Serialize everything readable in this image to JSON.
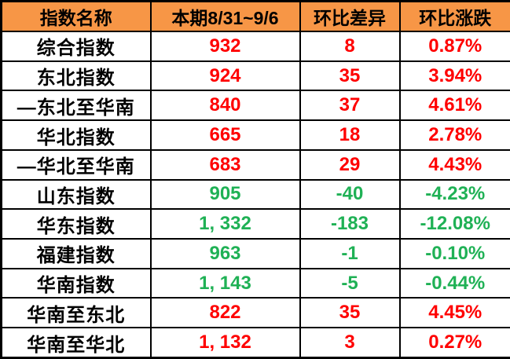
{
  "colors": {
    "header_bg": "#F79646",
    "up": "#FF0000",
    "down": "#1FB155",
    "border": "#000000",
    "row_bg": "#FFFFFF"
  },
  "chart_data": {
    "type": "table",
    "columns": [
      "指数名称",
      "本期8/31~9/6",
      "环比差异",
      "环比涨跌"
    ],
    "rows": [
      {
        "name": "综合指数",
        "current": "932",
        "diff": "8",
        "pct": "0.87%",
        "trend": "up"
      },
      {
        "name": "东北指数",
        "current": "924",
        "diff": "35",
        "pct": "3.94%",
        "trend": "up"
      },
      {
        "name": "—东北至华南",
        "current": "840",
        "diff": "37",
        "pct": "4.61%",
        "trend": "up"
      },
      {
        "name": "华北指数",
        "current": "665",
        "diff": "18",
        "pct": "2.78%",
        "trend": "up"
      },
      {
        "name": "—华北至华南",
        "current": "683",
        "diff": "29",
        "pct": "4.43%",
        "trend": "up"
      },
      {
        "name": "山东指数",
        "current": "905",
        "diff": "-40",
        "pct": "-4.23%",
        "trend": "down"
      },
      {
        "name": "华东指数",
        "current": "1, 332",
        "diff": "-183",
        "pct": "-12.08%",
        "trend": "down"
      },
      {
        "name": "福建指数",
        "current": "963",
        "diff": "-1",
        "pct": "-0.10%",
        "trend": "down"
      },
      {
        "name": "华南指数",
        "current": "1, 143",
        "diff": "-5",
        "pct": "-0.44%",
        "trend": "down"
      },
      {
        "name": "华南至东北",
        "current": "822",
        "diff": "35",
        "pct": "4.45%",
        "trend": "up"
      },
      {
        "name": "华南至华北",
        "current": "1, 132",
        "diff": "3",
        "pct": "0.27%",
        "trend": "up"
      }
    ]
  }
}
